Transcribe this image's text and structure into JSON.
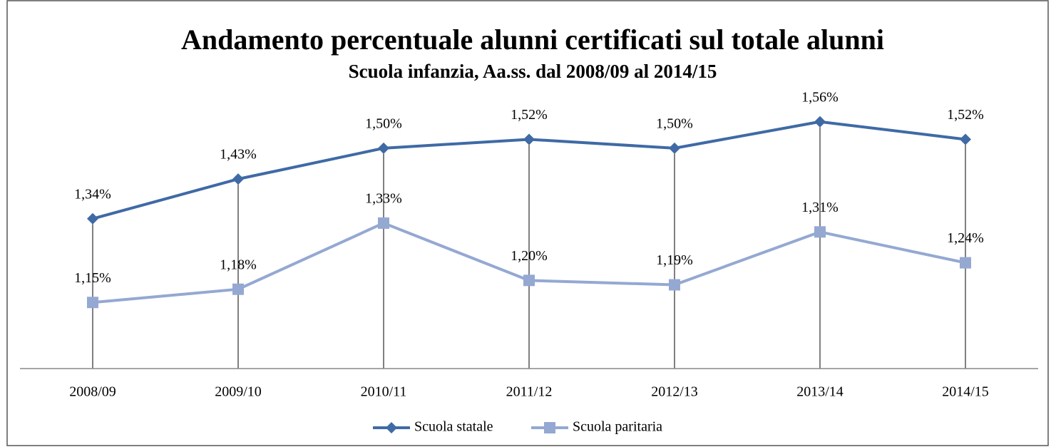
{
  "chart_data": {
    "type": "line",
    "title": "Andamento percentuale alunni certificati sul totale alunni",
    "subtitle": "Scuola infanzia, Aa.ss. dal 2008/09 al 2014/15",
    "categories": [
      "2008/09",
      "2009/10",
      "2010/11",
      "2011/12",
      "2012/13",
      "2013/14",
      "2014/15"
    ],
    "series": [
      {
        "name": "Scuola statale",
        "color": "#3f6aa5",
        "marker": "diamond",
        "values": [
          1.34,
          1.43,
          1.5,
          1.52,
          1.5,
          1.56,
          1.52
        ],
        "value_labels": [
          "1,34%",
          "1,43%",
          "1,50%",
          "1,52%",
          "1,50%",
          "1,56%",
          "1,52%"
        ]
      },
      {
        "name": "Scuola paritaria",
        "color": "#94a8d2",
        "marker": "square",
        "values": [
          1.15,
          1.18,
          1.33,
          1.2,
          1.19,
          1.31,
          1.24
        ],
        "value_labels": [
          "1,15%",
          "1,18%",
          "1,33%",
          "1,20%",
          "1,19%",
          "1,31%",
          "1,24%"
        ]
      }
    ],
    "ylim": [
      1.0,
      1.6
    ],
    "drop_lines": true,
    "legend": "bottom"
  }
}
